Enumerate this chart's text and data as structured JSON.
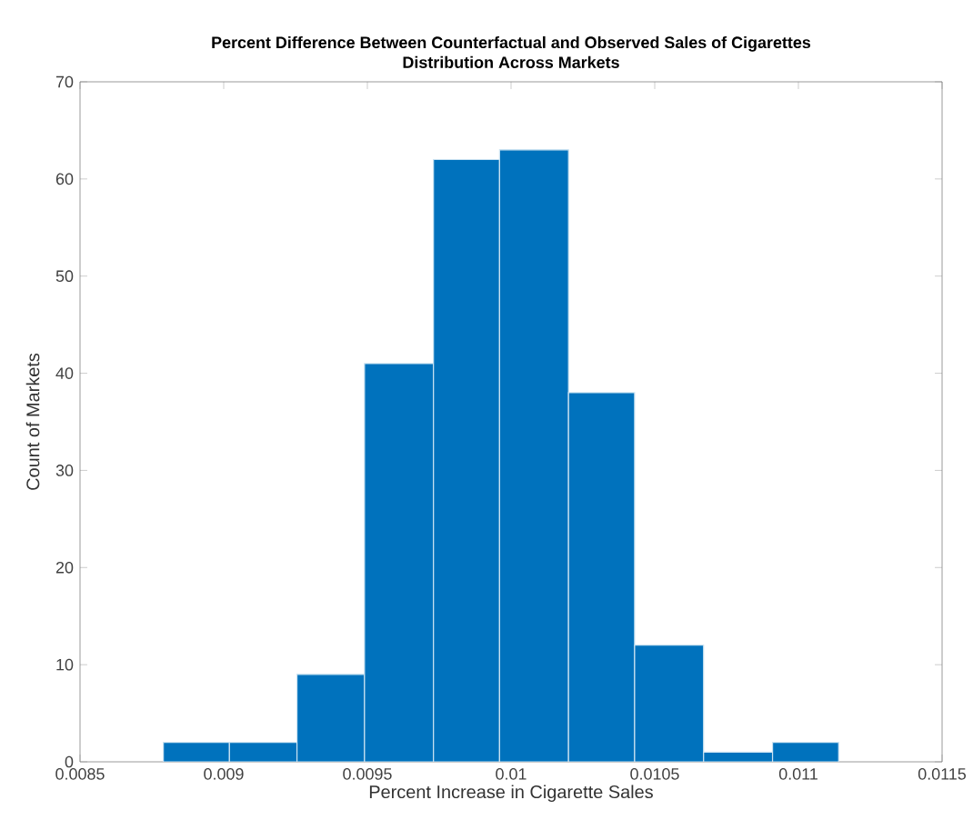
{
  "chart_data": {
    "type": "histogram",
    "title": "Percent Difference Between Counterfactual and Observed Sales of Cigarettes\nDistribution Across Markets",
    "xlabel": "Percent Increase in Cigarette Sales",
    "ylabel": "Count of Markets",
    "bins": [
      0.00879,
      0.00902,
      0.009255,
      0.00949,
      0.00973,
      0.00996,
      0.0102,
      0.01043,
      0.01067,
      0.01091,
      0.01114
    ],
    "values": [
      2,
      2,
      9,
      41,
      62,
      63,
      38,
      12,
      1,
      2
    ],
    "color": "#0072bd",
    "xlim": [
      0.0085,
      0.0115
    ],
    "ylim": [
      0,
      70
    ],
    "xticks": [
      0.0085,
      0.009,
      0.0095,
      0.01,
      0.0105,
      0.011,
      0.0115
    ],
    "yticks": [
      0,
      10,
      20,
      30,
      40,
      50,
      60,
      70
    ]
  }
}
